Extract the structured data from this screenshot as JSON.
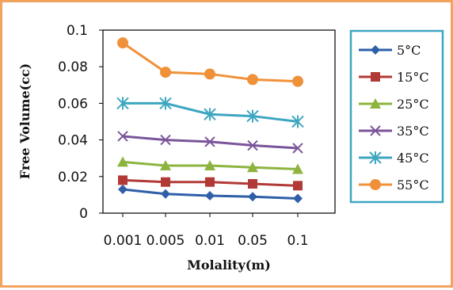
{
  "chart_data": {
    "type": "line",
    "categories": [
      "0.001",
      "0.005",
      "0.01",
      "0.05",
      "0.1"
    ],
    "series": [
      {
        "name": "5°C",
        "color": "#2E5FA8",
        "marker": "diamond",
        "values": [
          0.013,
          0.0105,
          0.0095,
          0.009,
          0.008
        ]
      },
      {
        "name": "15°C",
        "color": "#B23A36",
        "marker": "square",
        "values": [
          0.018,
          0.017,
          0.017,
          0.016,
          0.015
        ]
      },
      {
        "name": "25°C",
        "color": "#8DB43F",
        "marker": "triangle",
        "values": [
          0.028,
          0.026,
          0.026,
          0.025,
          0.024
        ]
      },
      {
        "name": "35°C",
        "color": "#7A559A",
        "marker": "x",
        "values": [
          0.042,
          0.04,
          0.039,
          0.037,
          0.0355
        ]
      },
      {
        "name": "45°C",
        "color": "#3DA6C0",
        "marker": "star",
        "values": [
          0.06,
          0.06,
          0.054,
          0.053,
          0.05
        ]
      },
      {
        "name": "55°C",
        "color": "#F0913A",
        "marker": "circle",
        "values": [
          0.093,
          0.077,
          0.076,
          0.073,
          0.072
        ]
      }
    ],
    "yticks": [
      "0",
      "0.02",
      "0.04",
      "0.06",
      "0.08",
      "0.1"
    ],
    "ylim": [
      0,
      0.1
    ],
    "xlabel": "Molality(m)",
    "ylabel": "Free Volume(cc)",
    "grid": false,
    "legend_position": "right"
  }
}
